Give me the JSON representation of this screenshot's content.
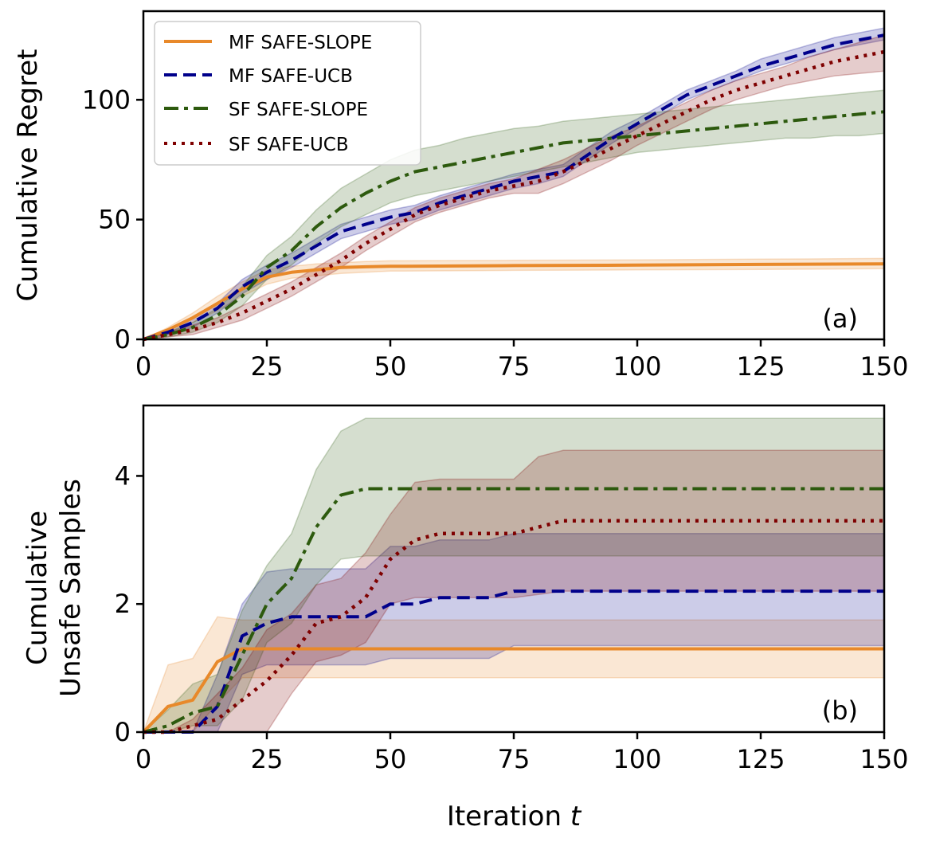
{
  "chart_data": [
    {
      "type": "line",
      "panel_label": "(a)",
      "ylabel": "Cumulative Regret",
      "xlabel": "",
      "xlim": [
        0,
        150
      ],
      "ylim": [
        0,
        137
      ],
      "xticks": [
        0,
        25,
        50,
        75,
        100,
        125,
        150
      ],
      "yticks": [
        0,
        50,
        100
      ],
      "legend_position": "top-left",
      "series": [
        {
          "name": "MF SAFE-SLOPE",
          "color": "#e8892a",
          "dash": "solid",
          "x": [
            0,
            5,
            10,
            15,
            20,
            25,
            30,
            35,
            40,
            45,
            50,
            75,
            100,
            125,
            150
          ],
          "y": [
            0,
            4,
            9,
            15,
            21,
            26,
            28,
            29,
            30,
            30.3,
            30.5,
            30.8,
            31,
            31.3,
            31.5
          ],
          "lo": [
            0,
            3,
            7,
            12,
            18,
            23,
            25.5,
            26.5,
            27.5,
            28,
            28.5,
            28.8,
            29,
            29.2,
            29.5
          ],
          "hi": [
            0,
            5,
            11,
            18,
            24,
            29,
            30.5,
            31.5,
            32,
            32.5,
            32.8,
            33,
            33.2,
            33.5,
            33.8
          ]
        },
        {
          "name": "MF SAFE-UCB",
          "color": "#00008b",
          "dash": "dashed",
          "x": [
            0,
            5,
            10,
            15,
            20,
            25,
            30,
            35,
            40,
            45,
            50,
            55,
            60,
            65,
            70,
            75,
            80,
            85,
            90,
            95,
            100,
            105,
            110,
            115,
            120,
            125,
            130,
            135,
            140,
            145,
            150
          ],
          "y": [
            0,
            3,
            7,
            13,
            22,
            28,
            33,
            39,
            45,
            48,
            51,
            53,
            57,
            60,
            63,
            66,
            68,
            70,
            77,
            84,
            90,
            96,
            102,
            106,
            110,
            114,
            117,
            120,
            123,
            125,
            127
          ],
          "lo": [
            0,
            2,
            5,
            11,
            19,
            25,
            30,
            36,
            42,
            45,
            48,
            50,
            54,
            57,
            60,
            63,
            65,
            68,
            75,
            82,
            88,
            94,
            100,
            104,
            108,
            112,
            115,
            118,
            121,
            123,
            125
          ],
          "hi": [
            0,
            4,
            9,
            15,
            25,
            31,
            36,
            42,
            48,
            51,
            54,
            56,
            60,
            63,
            66,
            69,
            71,
            73,
            80,
            87,
            92,
            98,
            104,
            108,
            112,
            117,
            120,
            123,
            126,
            128,
            130
          ]
        },
        {
          "name": "SF SAFE-SLOPE",
          "color": "#2d5a0e",
          "dash": "dashdot",
          "x": [
            0,
            5,
            10,
            15,
            20,
            25,
            30,
            35,
            40,
            45,
            50,
            55,
            60,
            65,
            70,
            75,
            80,
            85,
            90,
            95,
            100,
            105,
            110,
            115,
            120,
            125,
            130,
            135,
            140,
            145,
            150
          ],
          "y": [
            0,
            2,
            5,
            10,
            18,
            30,
            37,
            47,
            55,
            61,
            66,
            70,
            72,
            74,
            76,
            78,
            80,
            82,
            83,
            84,
            85,
            86,
            87,
            88,
            89,
            90,
            91,
            92,
            93,
            94,
            95
          ],
          "lo": [
            0,
            1,
            3,
            7,
            14,
            25,
            31,
            40,
            47,
            52,
            57,
            60,
            62,
            64,
            66,
            68,
            70,
            72,
            74,
            76,
            78,
            79,
            80,
            81,
            82,
            83,
            84,
            84,
            85,
            85,
            86
          ],
          "hi": [
            0,
            3,
            7,
            13,
            22,
            35,
            43,
            54,
            63,
            69,
            75,
            79,
            81,
            84,
            86,
            88,
            89,
            91,
            92,
            93,
            94,
            95,
            96,
            97,
            98,
            99,
            100,
            101,
            102,
            103,
            104
          ]
        },
        {
          "name": "SF SAFE-UCB",
          "color": "#7f0000",
          "dash": "dotted",
          "x": [
            0,
            5,
            10,
            15,
            20,
            25,
            30,
            35,
            40,
            45,
            50,
            55,
            60,
            65,
            70,
            75,
            80,
            85,
            90,
            95,
            100,
            105,
            110,
            115,
            120,
            125,
            130,
            135,
            140,
            145,
            150
          ],
          "y": [
            0,
            2,
            4,
            7,
            11,
            16,
            21,
            27,
            33,
            40,
            46,
            52,
            56,
            59,
            62,
            64,
            66,
            70,
            75,
            80,
            85,
            90,
            95,
            100,
            104,
            107,
            110,
            113,
            116,
            118,
            120
          ],
          "lo": [
            0,
            1,
            2,
            5,
            8,
            13,
            18,
            24,
            30,
            37,
            43,
            49,
            53,
            56,
            59,
            61,
            61,
            65,
            70,
            75,
            81,
            86,
            91,
            96,
            100,
            103,
            106,
            108,
            110,
            111,
            112
          ],
          "hi": [
            0,
            3,
            6,
            9,
            14,
            19,
            24,
            30,
            36,
            43,
            49,
            55,
            59,
            62,
            65,
            67,
            71,
            75,
            80,
            85,
            89,
            94,
            99,
            104,
            108,
            111,
            114,
            118,
            121,
            124,
            127
          ]
        }
      ]
    },
    {
      "type": "line",
      "panel_label": "(b)",
      "ylabel": [
        "Cumulative",
        "Unsafe Samples"
      ],
      "xlabel": "Iteration t",
      "xlabel_main": "Iteration ",
      "xlabel_var": "t",
      "xlim": [
        0,
        150
      ],
      "ylim": [
        0,
        5.1
      ],
      "xticks": [
        0,
        25,
        50,
        75,
        100,
        125,
        150
      ],
      "yticks": [
        0,
        2,
        4
      ],
      "series": [
        {
          "name": "MF SAFE-SLOPE",
          "color": "#e8892a",
          "dash": "solid",
          "x": [
            0,
            5,
            10,
            15,
            20,
            25,
            30,
            50,
            75,
            100,
            125,
            150
          ],
          "y": [
            0,
            0.4,
            0.5,
            1.1,
            1.3,
            1.3,
            1.3,
            1.3,
            1.3,
            1.3,
            1.3,
            1.3
          ],
          "lo": [
            0,
            0,
            0,
            0.45,
            0.85,
            0.85,
            0.85,
            0.85,
            0.85,
            0.85,
            0.85,
            0.85
          ],
          "hi": [
            0,
            1.05,
            1.15,
            1.8,
            1.75,
            1.75,
            1.75,
            1.75,
            1.75,
            1.75,
            1.75,
            1.75
          ]
        },
        {
          "name": "MF SAFE-UCB",
          "color": "#00008b",
          "dash": "dashed",
          "x": [
            0,
            5,
            10,
            15,
            20,
            25,
            30,
            35,
            40,
            45,
            50,
            55,
            60,
            65,
            70,
            75,
            80,
            100,
            125,
            150
          ],
          "y": [
            0,
            0,
            0,
            0.4,
            1.5,
            1.7,
            1.8,
            1.8,
            1.8,
            1.8,
            2.0,
            2.0,
            2.1,
            2.1,
            2.1,
            2.2,
            2.2,
            2.2,
            2.2,
            2.2
          ],
          "lo": [
            0,
            0,
            0,
            0,
            0.9,
            1.05,
            1.05,
            1.05,
            1.05,
            1.05,
            1.15,
            1.15,
            1.15,
            1.15,
            1.15,
            1.35,
            1.35,
            1.35,
            1.35,
            1.35
          ],
          "hi": [
            0,
            0,
            0,
            0.9,
            2.0,
            2.5,
            2.55,
            2.55,
            2.55,
            2.55,
            2.9,
            2.9,
            3.0,
            3.0,
            3.0,
            3.1,
            3.1,
            3.1,
            3.1,
            3.1
          ]
        },
        {
          "name": "SF SAFE-SLOPE",
          "color": "#2d5a0e",
          "dash": "dashdot",
          "x": [
            0,
            5,
            10,
            15,
            20,
            25,
            30,
            35,
            40,
            45,
            50,
            75,
            100,
            125,
            150
          ],
          "y": [
            0,
            0.1,
            0.3,
            0.4,
            1.2,
            2.0,
            2.4,
            3.2,
            3.7,
            3.8,
            3.8,
            3.8,
            3.8,
            3.8,
            3.8
          ],
          "lo": [
            0,
            0,
            0.1,
            0.1,
            0.5,
            1.4,
            1.7,
            2.3,
            2.7,
            2.75,
            2.75,
            2.75,
            2.75,
            2.75,
            2.75
          ],
          "hi": [
            0,
            0.35,
            0.75,
            0.9,
            1.9,
            2.6,
            3.1,
            4.1,
            4.7,
            4.9,
            4.9,
            4.9,
            4.9,
            4.9,
            4.9
          ]
        },
        {
          "name": "SF SAFE-UCB",
          "color": "#7f0000",
          "dash": "dotted",
          "x": [
            0,
            5,
            10,
            15,
            20,
            25,
            30,
            35,
            40,
            45,
            50,
            55,
            60,
            65,
            70,
            75,
            80,
            85,
            100,
            125,
            150
          ],
          "y": [
            0,
            0,
            0.1,
            0.2,
            0.5,
            0.8,
            1.2,
            1.7,
            1.8,
            2.1,
            2.7,
            3.0,
            3.1,
            3.1,
            3.1,
            3.1,
            3.2,
            3.3,
            3.3,
            3.3,
            3.3
          ],
          "lo": [
            0,
            0,
            0,
            0,
            0,
            0,
            0.6,
            1.1,
            1.2,
            1.4,
            2.0,
            2.1,
            2.1,
            2.1,
            2.1,
            2.1,
            2.15,
            2.2,
            2.2,
            2.2,
            2.2
          ],
          "hi": [
            0,
            0,
            0.2,
            0.6,
            1.0,
            1.6,
            1.85,
            2.3,
            2.4,
            2.8,
            3.4,
            3.9,
            3.95,
            3.95,
            3.95,
            3.95,
            4.3,
            4.4,
            4.4,
            4.4,
            4.4
          ]
        }
      ]
    }
  ]
}
